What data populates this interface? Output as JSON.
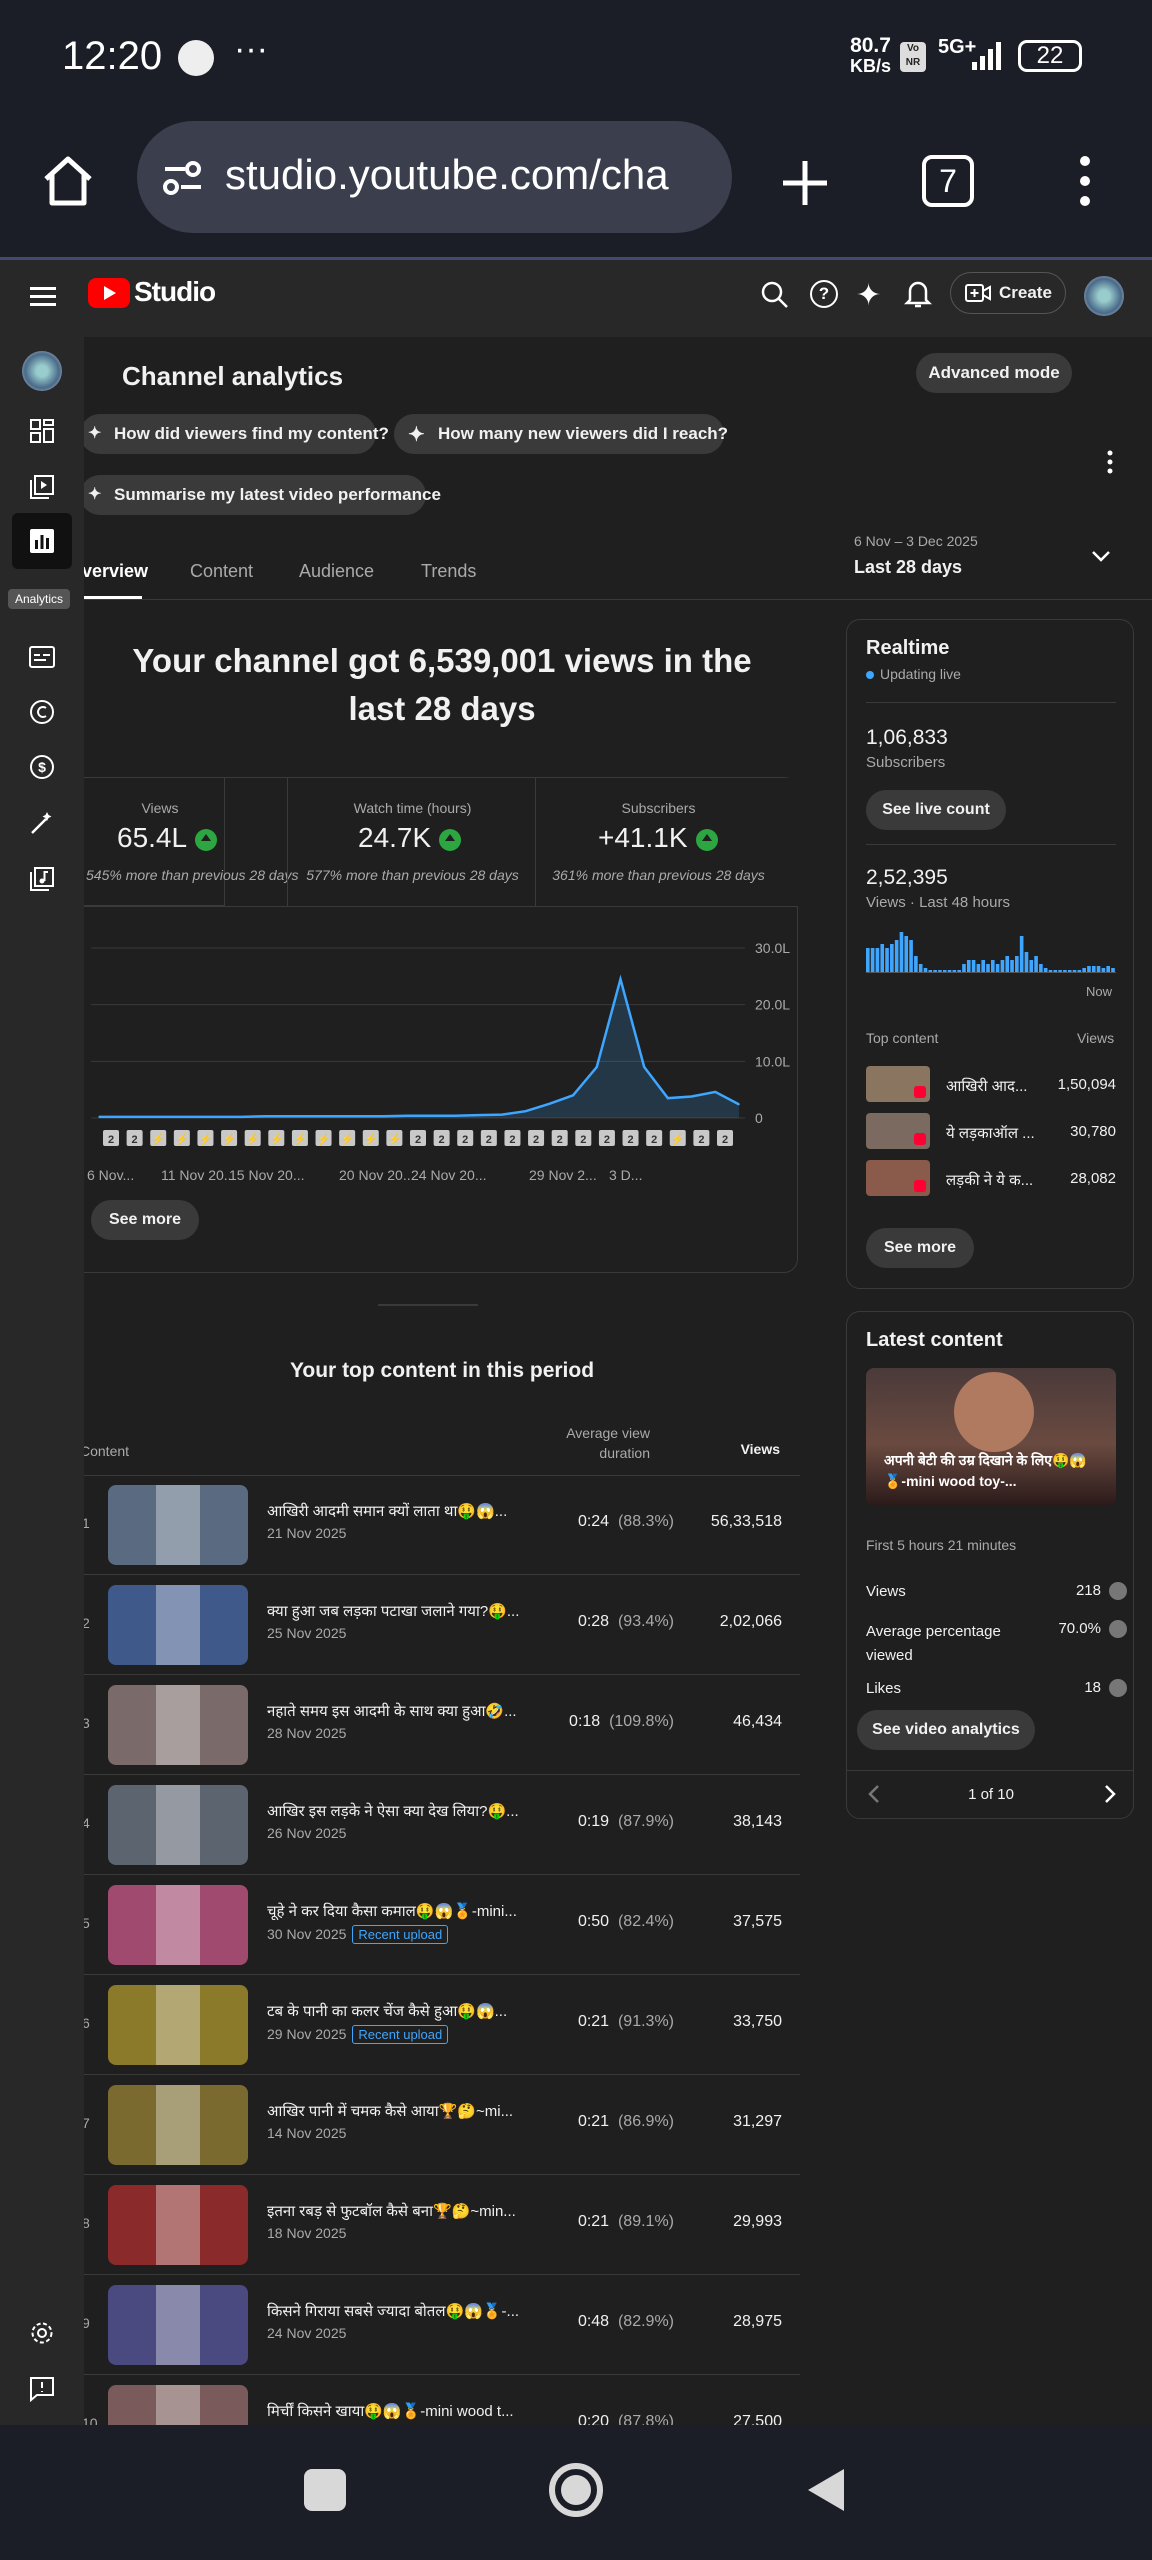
{
  "status": {
    "time": "12:20",
    "speed_top": "80.7",
    "speed_bottom": "KB/s",
    "network": "5G+",
    "battery": "22"
  },
  "browser": {
    "url": "studio.youtube.com/cha",
    "tab_count": "7"
  },
  "app": {
    "logo": "Studio",
    "create_label": "Create"
  },
  "sidebar": {
    "tooltip": "Analytics"
  },
  "header": {
    "title": "Channel analytics",
    "advanced_mode": "Advanced mode"
  },
  "suggestions": [
    "How did viewers find my content?",
    "How many new viewers did I reach?",
    "Summarise my latest video performance"
  ],
  "date_range": {
    "range": "6 Nov – 3 Dec 2025",
    "label": "Last 28 days"
  },
  "tabs": [
    "verview",
    "Content",
    "Audience",
    "Trends"
  ],
  "summary": {
    "headline_line1": "Your channel got 6,539,001 views in the",
    "headline_line2": "last 28 days"
  },
  "metrics": [
    {
      "label": "Views",
      "value": "65.4L",
      "change": "545% more than previous 28 days"
    },
    {
      "label": "Watch time (hours)",
      "value": "24.7K",
      "change": "577% more than previous 28 days"
    },
    {
      "label": "Subscribers",
      "value": "+41.1K",
      "change": "361% more than previous 28 days"
    }
  ],
  "chart_data": {
    "type": "area",
    "x_tick_labels": [
      "6 Nov...",
      "11 Nov 20...",
      "15 Nov 20...",
      "20 Nov 20...",
      "24 Nov 20...",
      "29 Nov 2...",
      "3 D..."
    ],
    "y_tick_labels": [
      "30.0L",
      "20.0L",
      "10.0L",
      "0"
    ],
    "ylim": [
      0,
      30
    ],
    "x": [
      "6 Nov",
      "7 Nov",
      "8 Nov",
      "9 Nov",
      "10 Nov",
      "11 Nov",
      "12 Nov",
      "13 Nov",
      "14 Nov",
      "15 Nov",
      "16 Nov",
      "17 Nov",
      "18 Nov",
      "19 Nov",
      "20 Nov",
      "21 Nov",
      "22 Nov",
      "23 Nov",
      "24 Nov",
      "25 Nov",
      "26 Nov",
      "27 Nov",
      "28 Nov",
      "29 Nov",
      "30 Nov",
      "1 Dec",
      "2 Dec",
      "3 Dec"
    ],
    "values": [
      0.2,
      0.2,
      0.2,
      0.2,
      0.2,
      0.2,
      0.2,
      0.3,
      0.3,
      0.3,
      0.3,
      0.3,
      0.3,
      0.4,
      0.4,
      0.4,
      0.5,
      0.6,
      1.2,
      2.5,
      4,
      9,
      24.5,
      9,
      3.5,
      3.8,
      4.6,
      2.4
    ],
    "markers": [
      "2",
      "2",
      "s",
      "s",
      "s",
      "s",
      "s",
      "s",
      "s",
      "s",
      "s",
      "s",
      "s",
      "2",
      "2",
      "2",
      "2",
      "2",
      "2",
      "2",
      "2",
      "2",
      "2",
      "2",
      "s",
      "2",
      "2"
    ],
    "see_more": "See more"
  },
  "top_content": {
    "title": "Your top content in this period",
    "col_content": "Content",
    "col_avg": "Average view duration",
    "col_views": "Views",
    "rows": [
      {
        "rank": "1",
        "title": "आखिरी आदमी समान क्यों लाता था🤑😱...",
        "date": "21 Nov 2025",
        "avg": "0:24",
        "pct": "(88.3%)",
        "views": "56,33,518",
        "badge": "",
        "color": "#5a6a80"
      },
      {
        "rank": "2",
        "title": "क्या हुआ जब लड़का पटाखा जलाने गया?🤑...",
        "date": "25 Nov 2025",
        "avg": "0:28",
        "pct": "(93.4%)",
        "views": "2,02,066",
        "badge": "",
        "color": "#3f5a8a"
      },
      {
        "rank": "3",
        "title": "नहाते समय इस आदमी के साथ क्या हुआ🤣...",
        "date": "28 Nov 2025",
        "avg": "0:18",
        "pct": "(109.8%)",
        "views": "46,434",
        "badge": "",
        "color": "#7a6a6a"
      },
      {
        "rank": "4",
        "title": "आखिर इस लड़के ने ऐसा क्या देख लिया?🤑...",
        "date": "26 Nov 2025",
        "avg": "0:19",
        "pct": "(87.9%)",
        "views": "38,143",
        "badge": "",
        "color": "#5c6470"
      },
      {
        "rank": "5",
        "title": "चूहे ने कर दिया कैसा कमाल🤑😱🏅-mini...",
        "date": "30 Nov 2025",
        "avg": "0:50",
        "pct": "(82.4%)",
        "views": "37,575",
        "badge": "Recent upload",
        "color": "#a04a70"
      },
      {
        "rank": "6",
        "title": "टब के पानी का कलर चेंज कैसे हुआ🤑😱...",
        "date": "29 Nov 2025",
        "avg": "0:21",
        "pct": "(91.3%)",
        "views": "33,750",
        "badge": "Recent upload",
        "color": "#8a7a2a"
      },
      {
        "rank": "7",
        "title": "आखिर पानी में चमक कैसे आया🏆🤔~mi...",
        "date": "14 Nov 2025",
        "avg": "0:21",
        "pct": "(86.9%)",
        "views": "31,297",
        "badge": "",
        "color": "#7a6a30"
      },
      {
        "rank": "8",
        "title": "इतना रबड़ से फुटबॉल कैसे बना🏆🤔~min...",
        "date": "18 Nov 2025",
        "avg": "0:21",
        "pct": "(89.1%)",
        "views": "29,993",
        "badge": "",
        "color": "#8a2a2a"
      },
      {
        "rank": "9",
        "title": "किसने गिराया सबसे ज्यादा बोतल🤑😱🏅-...",
        "date": "24 Nov 2025",
        "avg": "0:48",
        "pct": "(82.9%)",
        "views": "28,975",
        "badge": "",
        "color": "#4a4a80"
      },
      {
        "rank": "10",
        "title": "मिर्चीं किसने खाया🤑😱🏅-mini wood t...",
        "date": "",
        "avg": "0:20",
        "pct": "(87.8%)",
        "views": "27,500",
        "badge": "",
        "color": "#7a5a5a"
      }
    ]
  },
  "realtime": {
    "title": "Realtime",
    "updating": "Updating live",
    "subs_value": "1,06,833",
    "subs_label": "Subscribers",
    "see_live": "See live count",
    "views_value": "2,52,395",
    "views_label": "Views · Last 48 hours",
    "now": "Now",
    "bars": [
      6,
      6,
      6,
      7,
      6,
      7,
      8,
      10,
      9,
      8,
      4,
      2,
      1,
      0.5,
      0.5,
      0.5,
      0.5,
      0.5,
      0.5,
      0.5,
      2,
      3,
      3,
      2,
      3,
      2,
      3,
      2,
      3,
      4,
      3,
      4,
      9,
      5,
      3,
      4,
      2,
      1,
      0.5,
      0.5,
      0.5,
      0.5,
      0.5,
      0.5,
      0.5,
      1,
      1.5,
      1.5,
      1.5,
      1,
      1.5,
      1
    ],
    "top_content_label": "Top content",
    "views_col": "Views",
    "items": [
      {
        "title": "आखिरी आद...",
        "views": "1,50,094"
      },
      {
        "title": "ये लड़काऑल ...",
        "views": "30,780"
      },
      {
        "title": "लड़की ने ये क...",
        "views": "28,082"
      }
    ],
    "see_more": "See more"
  },
  "latest": {
    "title": "Latest content",
    "thumb_caption": "अपनी बेटी की उम्र दिखाने के लिए🤑😱🏅-mini wood toy-...",
    "first": "First 5 hours 21 minutes",
    "stats": [
      {
        "label": "Views",
        "value": "218"
      },
      {
        "label": "Average percentage viewed",
        "value": "70.0%"
      },
      {
        "label": "Likes",
        "value": "18"
      }
    ],
    "button": "See video analytics",
    "pager": "1 of 10"
  },
  "colors": {
    "accent": "#3ea6ff",
    "green": "#2ba640",
    "red": "#ff0000",
    "chart_line": "#3ea6ff"
  }
}
